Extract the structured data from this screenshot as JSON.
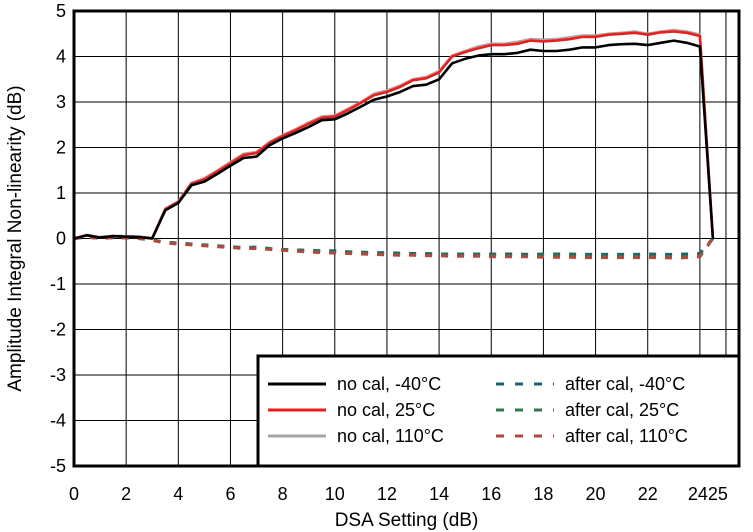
{
  "chart_data": {
    "type": "line",
    "xlabel": "DSA Setting (dB)",
    "ylabel": "Amplitude Integral Non-linearity (dB)",
    "xlim": [
      0,
      25.5
    ],
    "ylim": [
      -5,
      5
    ],
    "x_ticks": [
      0,
      2,
      4,
      6,
      8,
      10,
      12,
      14,
      16,
      18,
      20,
      22,
      24,
      25
    ],
    "x_tick_labels": [
      "0",
      "2",
      "4",
      "6",
      "8",
      "10",
      "12",
      "14",
      "16",
      "18",
      "20",
      "22",
      "24",
      "25"
    ],
    "y_ticks": [
      -5,
      -4,
      -3,
      -2,
      -1,
      0,
      1,
      2,
      3,
      4,
      5
    ],
    "y_tick_labels": [
      "-5",
      "-4",
      "-3",
      "-2",
      "-1",
      "0",
      "1",
      "2",
      "3",
      "4",
      "5"
    ],
    "grid": true,
    "legend_position": "bottom-right",
    "series": [
      {
        "name": "no cal, -40°C",
        "color": "#000000",
        "dash": "solid",
        "x": [
          0,
          0.5,
          1,
          1.5,
          2,
          2.5,
          3,
          3.5,
          4,
          4.5,
          5,
          5.5,
          6,
          6.5,
          7,
          7.5,
          8,
          8.5,
          9,
          9.5,
          10,
          10.5,
          11,
          11.5,
          12,
          12.5,
          13,
          13.5,
          14,
          14.5,
          15,
          15.5,
          16,
          16.5,
          17,
          17.5,
          18,
          18.5,
          19,
          19.5,
          20,
          20.5,
          21,
          21.5,
          22,
          22.5,
          23,
          23.5,
          24,
          24.5
        ],
        "y": [
          0.0,
          0.07,
          0.02,
          0.05,
          0.04,
          0.03,
          0.0,
          0.62,
          0.78,
          1.17,
          1.25,
          1.42,
          1.6,
          1.77,
          1.8,
          2.05,
          2.2,
          2.32,
          2.45,
          2.6,
          2.62,
          2.75,
          2.9,
          3.05,
          3.12,
          3.22,
          3.35,
          3.38,
          3.5,
          3.85,
          3.95,
          4.02,
          4.05,
          4.05,
          4.08,
          4.15,
          4.12,
          4.12,
          4.15,
          4.2,
          4.2,
          4.25,
          4.27,
          4.28,
          4.25,
          4.3,
          4.35,
          4.3,
          4.22,
          0.0
        ]
      },
      {
        "name": "no cal, 25°C",
        "color": "#ee1c1c",
        "dash": "solid",
        "x": [
          0,
          0.5,
          1,
          1.5,
          2,
          2.5,
          3,
          3.5,
          4,
          4.5,
          5,
          5.5,
          6,
          6.5,
          7,
          7.5,
          8,
          8.5,
          9,
          9.5,
          10,
          10.5,
          11,
          11.5,
          12,
          12.5,
          13,
          13.5,
          14,
          14.5,
          15,
          15.5,
          16,
          16.5,
          17,
          17.5,
          18,
          18.5,
          19,
          19.5,
          20,
          20.5,
          21,
          21.5,
          22,
          22.5,
          23,
          23.5,
          24,
          24.5
        ],
        "y": [
          0.0,
          0.07,
          0.02,
          0.05,
          0.04,
          0.03,
          0.0,
          0.64,
          0.8,
          1.2,
          1.3,
          1.47,
          1.65,
          1.83,
          1.88,
          2.1,
          2.25,
          2.38,
          2.52,
          2.65,
          2.68,
          2.82,
          2.98,
          3.15,
          3.22,
          3.33,
          3.48,
          3.52,
          3.65,
          4.0,
          4.1,
          4.18,
          4.25,
          4.25,
          4.28,
          4.35,
          4.33,
          4.35,
          4.38,
          4.43,
          4.43,
          4.48,
          4.5,
          4.52,
          4.48,
          4.53,
          4.55,
          4.52,
          4.45,
          0.0
        ]
      },
      {
        "name": "no cal, 110°C",
        "color": "#a6a6a6",
        "dash": "solid",
        "x": [
          0,
          0.5,
          1,
          1.5,
          2,
          2.5,
          3,
          3.5,
          4,
          4.5,
          5,
          5.5,
          6,
          6.5,
          7,
          7.5,
          8,
          8.5,
          9,
          9.5,
          10,
          10.5,
          11,
          11.5,
          12,
          12.5,
          13,
          13.5,
          14,
          14.5,
          15,
          15.5,
          16,
          16.5,
          17,
          17.5,
          18,
          18.5,
          19,
          19.5,
          20,
          20.5,
          21,
          21.5,
          22,
          22.5,
          23,
          23.5,
          24,
          24.5
        ],
        "y": [
          0.0,
          0.08,
          0.03,
          0.06,
          0.05,
          0.04,
          0.01,
          0.66,
          0.82,
          1.22,
          1.32,
          1.5,
          1.68,
          1.86,
          1.9,
          2.12,
          2.27,
          2.4,
          2.55,
          2.68,
          2.7,
          2.85,
          3.0,
          3.18,
          3.25,
          3.36,
          3.5,
          3.55,
          3.68,
          4.02,
          4.12,
          4.22,
          4.28,
          4.28,
          4.32,
          4.38,
          4.37,
          4.38,
          4.42,
          4.46,
          4.46,
          4.5,
          4.52,
          4.55,
          4.5,
          4.55,
          4.58,
          4.55,
          4.48,
          0.0
        ]
      },
      {
        "name": "after cal, -40°C",
        "color": "#1f5f73",
        "dash": "dashed",
        "x": [
          0,
          0.5,
          1,
          1.5,
          2,
          2.5,
          3,
          3.5,
          4,
          4.5,
          5,
          5.5,
          6,
          6.5,
          7,
          7.5,
          8,
          8.5,
          9,
          9.5,
          10,
          10.5,
          11,
          11.5,
          12,
          12.5,
          13,
          13.5,
          14,
          14.5,
          15,
          15.5,
          16,
          16.5,
          17,
          17.5,
          18,
          18.5,
          19,
          19.5,
          20,
          20.5,
          21,
          21.5,
          22,
          22.5,
          23,
          23.5,
          24,
          24.5
        ],
        "y": [
          0.0,
          0.03,
          0.0,
          0.02,
          0.01,
          0.0,
          -0.03,
          -0.08,
          -0.1,
          -0.12,
          -0.14,
          -0.16,
          -0.18,
          -0.2,
          -0.19,
          -0.22,
          -0.24,
          -0.25,
          -0.26,
          -0.27,
          -0.27,
          -0.29,
          -0.3,
          -0.31,
          -0.31,
          -0.32,
          -0.33,
          -0.33,
          -0.34,
          -0.34,
          -0.34,
          -0.34,
          -0.34,
          -0.34,
          -0.34,
          -0.35,
          -0.34,
          -0.34,
          -0.34,
          -0.35,
          -0.35,
          -0.35,
          -0.35,
          -0.35,
          -0.34,
          -0.35,
          -0.35,
          -0.34,
          -0.33,
          0.0
        ]
      },
      {
        "name": "after cal, 25°C",
        "color": "#2e7a4a",
        "dash": "dashed",
        "x": [
          0,
          0.5,
          1,
          1.5,
          2,
          2.5,
          3,
          3.5,
          4,
          4.5,
          5,
          5.5,
          6,
          6.5,
          7,
          7.5,
          8,
          8.5,
          9,
          9.5,
          10,
          10.5,
          11,
          11.5,
          12,
          12.5,
          13,
          13.5,
          14,
          14.5,
          15,
          15.5,
          16,
          16.5,
          17,
          17.5,
          18,
          18.5,
          19,
          19.5,
          20,
          20.5,
          21,
          21.5,
          22,
          22.5,
          23,
          23.5,
          24,
          24.5
        ],
        "y": [
          0.0,
          0.03,
          0.0,
          0.02,
          0.01,
          0.0,
          -0.03,
          -0.09,
          -0.11,
          -0.13,
          -0.15,
          -0.17,
          -0.19,
          -0.21,
          -0.21,
          -0.23,
          -0.25,
          -0.27,
          -0.28,
          -0.29,
          -0.3,
          -0.31,
          -0.32,
          -0.33,
          -0.34,
          -0.35,
          -0.35,
          -0.36,
          -0.36,
          -0.37,
          -0.37,
          -0.37,
          -0.37,
          -0.37,
          -0.38,
          -0.38,
          -0.38,
          -0.38,
          -0.38,
          -0.39,
          -0.39,
          -0.39,
          -0.39,
          -0.39,
          -0.39,
          -0.39,
          -0.4,
          -0.39,
          -0.37,
          0.0
        ]
      },
      {
        "name": "after cal, 110°C",
        "color": "#b5483e",
        "dash": "dashed",
        "x": [
          0,
          0.5,
          1,
          1.5,
          2,
          2.5,
          3,
          3.5,
          4,
          4.5,
          5,
          5.5,
          6,
          6.5,
          7,
          7.5,
          8,
          8.5,
          9,
          9.5,
          10,
          10.5,
          11,
          11.5,
          12,
          12.5,
          13,
          13.5,
          14,
          14.5,
          15,
          15.5,
          16,
          16.5,
          17,
          17.5,
          18,
          18.5,
          19,
          19.5,
          20,
          20.5,
          21,
          21.5,
          22,
          22.5,
          23,
          23.5,
          24,
          24.5
        ],
        "y": [
          0.0,
          0.03,
          0.0,
          0.02,
          0.01,
          0.0,
          -0.04,
          -0.1,
          -0.12,
          -0.14,
          -0.16,
          -0.18,
          -0.2,
          -0.22,
          -0.22,
          -0.24,
          -0.26,
          -0.28,
          -0.3,
          -0.31,
          -0.32,
          -0.33,
          -0.34,
          -0.35,
          -0.36,
          -0.37,
          -0.37,
          -0.38,
          -0.38,
          -0.39,
          -0.39,
          -0.39,
          -0.4,
          -0.4,
          -0.4,
          -0.4,
          -0.41,
          -0.41,
          -0.41,
          -0.42,
          -0.42,
          -0.42,
          -0.42,
          -0.42,
          -0.42,
          -0.42,
          -0.43,
          -0.42,
          -0.4,
          0.0
        ]
      }
    ]
  }
}
